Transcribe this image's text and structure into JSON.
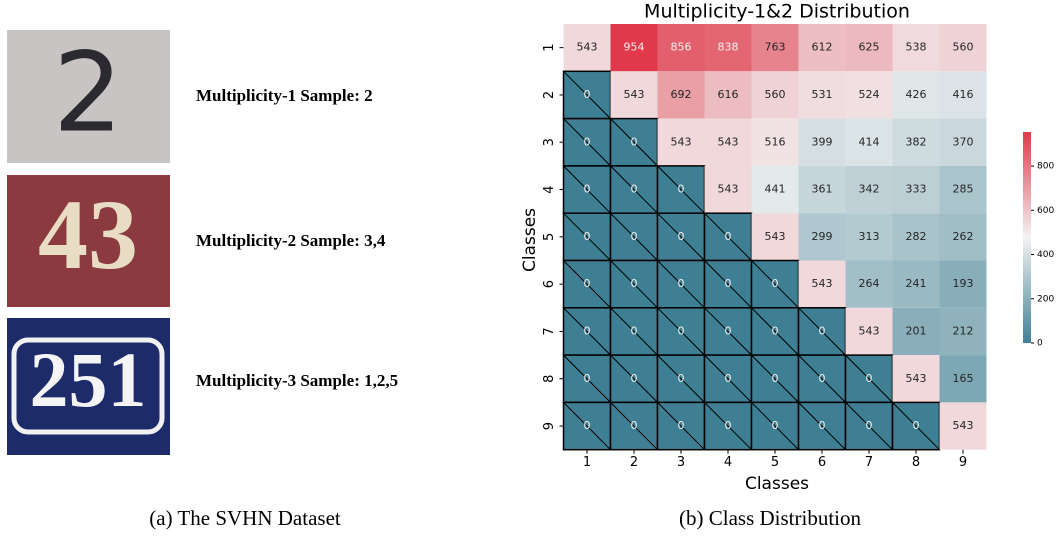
{
  "panel_a": {
    "samples": [
      {
        "digits": "2",
        "label": "Multiplicity-1 Sample: 2"
      },
      {
        "digits": "43",
        "label": "Multiplicity-2 Sample: 3,4"
      },
      {
        "digits": "251",
        "label": "Multiplicity-3 Sample: 1,2,5"
      }
    ],
    "caption": "(a) The SVHN Dataset"
  },
  "chart_data": {
    "type": "heatmap",
    "title": "Multiplicity-1&2 Distribution",
    "x_label": "Classes",
    "y_label": "Classes",
    "x_categories": [
      "1",
      "2",
      "3",
      "4",
      "5",
      "6",
      "7",
      "8",
      "9"
    ],
    "y_categories": [
      "1",
      "2",
      "3",
      "4",
      "5",
      "6",
      "7",
      "8",
      "9"
    ],
    "values": [
      [
        543,
        954,
        856,
        838,
        763,
        612,
        625,
        538,
        560
      ],
      [
        0,
        543,
        692,
        616,
        560,
        531,
        524,
        426,
        416
      ],
      [
        0,
        0,
        543,
        543,
        516,
        399,
        414,
        382,
        370
      ],
      [
        0,
        0,
        0,
        543,
        441,
        361,
        342,
        333,
        285
      ],
      [
        0,
        0,
        0,
        0,
        543,
        299,
        313,
        282,
        262
      ],
      [
        0,
        0,
        0,
        0,
        0,
        543,
        264,
        241,
        193
      ],
      [
        0,
        0,
        0,
        0,
        0,
        0,
        543,
        201,
        212
      ],
      [
        0,
        0,
        0,
        0,
        0,
        0,
        0,
        543,
        165
      ],
      [
        0,
        0,
        0,
        0,
        0,
        0,
        0,
        0,
        543
      ]
    ],
    "colors": [
      "#3f7f93",
      "#f2f2f2",
      "#e0394a"
    ],
    "clim": [
      0,
      954
    ],
    "colorbar_ticks": [
      0,
      200,
      400,
      600,
      800
    ],
    "caption": "(b) Class Distribution"
  }
}
